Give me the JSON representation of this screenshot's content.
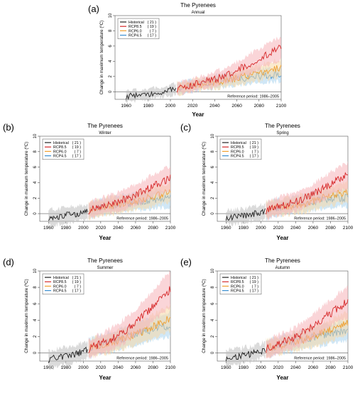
{
  "colors": {
    "historical": "#222222",
    "rcp85": "#d62728",
    "rcp60": "#f0a030",
    "rcp45": "#3a8fd0",
    "historical_band": "#bdbdbd",
    "rcp85_band": "#f6b2b8",
    "rcp60_band": "#f8d9a6",
    "rcp45_band": "#a9d3ef"
  },
  "chart_data": [
    {
      "id": "a",
      "letter": "(a)",
      "type": "line",
      "title": "The Pyrenees",
      "subtitle": "Annual",
      "xlabel": "Year",
      "ylabel": "Change in maximum temperature (ºC)",
      "xlim": [
        1950,
        2100
      ],
      "ylim": [
        -1,
        10
      ],
      "xticks": [
        1960,
        1980,
        2000,
        2020,
        2040,
        2060,
        2080,
        2100
      ],
      "yticks": [
        0,
        2,
        4,
        6,
        8,
        10
      ],
      "reference": "Reference period: 1986–2005",
      "legend_position": "top-left",
      "series": [
        {
          "name": "Historical",
          "count": "21",
          "key": "historical",
          "x": [
            1960,
            1970,
            1980,
            1990,
            2000,
            2005
          ],
          "y": [
            -0.6,
            -0.5,
            -0.3,
            -0.1,
            0.2,
            0.3
          ],
          "spread": [
            0.5,
            0.5,
            0.5,
            0.5,
            0.5,
            0.5
          ]
        },
        {
          "name": "RCP8.5",
          "count": "19",
          "key": "rcp85",
          "x": [
            2006,
            2020,
            2040,
            2060,
            2080,
            2100
          ],
          "y": [
            0.4,
            0.9,
            1.6,
            2.8,
            4.3,
            5.8
          ],
          "spread": [
            0.6,
            0.7,
            0.8,
            1.0,
            1.2,
            1.4
          ]
        },
        {
          "name": "RCP6.0",
          "count": "7",
          "key": "rcp60",
          "x": [
            2006,
            2020,
            2040,
            2060,
            2080,
            2100
          ],
          "y": [
            0.4,
            0.8,
            1.2,
            1.8,
            2.5,
            3.2
          ],
          "spread": [
            0.6,
            0.6,
            0.7,
            0.8,
            0.9,
            1.0
          ]
        },
        {
          "name": "RCP4.5",
          "count": "17",
          "key": "rcp45",
          "x": [
            2006,
            2020,
            2040,
            2060,
            2080,
            2100
          ],
          "y": [
            0.4,
            0.8,
            1.3,
            1.7,
            2.1,
            2.3
          ],
          "spread": [
            0.6,
            0.6,
            0.7,
            0.7,
            0.8,
            0.8
          ]
        }
      ]
    },
    {
      "id": "b",
      "letter": "(b)",
      "type": "line",
      "title": "The Pyrenees",
      "subtitle": "Winter",
      "xlabel": "Year",
      "ylabel": "Change in maximum temperature (ºC)",
      "xlim": [
        1950,
        2100
      ],
      "ylim": [
        -1,
        10
      ],
      "xticks": [
        1960,
        1980,
        2000,
        2020,
        2040,
        2060,
        2080,
        2100
      ],
      "yticks": [
        0,
        2,
        4,
        6,
        8,
        10
      ],
      "reference": "Reference period: 1986–2005",
      "legend_position": "top-left",
      "series": [
        {
          "name": "Historical",
          "count": "21",
          "key": "historical",
          "x": [
            1960,
            1970,
            1980,
            1990,
            2000,
            2005
          ],
          "y": [
            -0.5,
            -0.4,
            -0.2,
            -0.1,
            0.1,
            0.3
          ],
          "spread": [
            0.9,
            0.9,
            0.9,
            0.9,
            0.9,
            0.9
          ]
        },
        {
          "name": "RCP8.5",
          "count": "19",
          "key": "rcp85",
          "x": [
            2006,
            2020,
            2040,
            2060,
            2080,
            2100
          ],
          "y": [
            0.4,
            0.9,
            1.5,
            2.4,
            3.6,
            4.6
          ],
          "spread": [
            0.9,
            1.0,
            1.1,
            1.2,
            1.3,
            1.4
          ]
        },
        {
          "name": "RCP6.0",
          "count": "7",
          "key": "rcp60",
          "x": [
            2006,
            2020,
            2040,
            2060,
            2080,
            2100
          ],
          "y": [
            0.4,
            0.8,
            1.1,
            1.6,
            2.2,
            2.8
          ],
          "spread": [
            0.9,
            0.9,
            1.0,
            1.0,
            1.1,
            1.1
          ]
        },
        {
          "name": "RCP4.5",
          "count": "17",
          "key": "rcp45",
          "x": [
            2006,
            2020,
            2040,
            2060,
            2080,
            2100
          ],
          "y": [
            0.4,
            0.8,
            1.2,
            1.5,
            1.8,
            2.0
          ],
          "spread": [
            0.9,
            0.9,
            0.9,
            1.0,
            1.0,
            1.0
          ]
        }
      ]
    },
    {
      "id": "c",
      "letter": "(c)",
      "type": "line",
      "title": "The Pyrenees",
      "subtitle": "Spring",
      "xlabel": "Year",
      "ylabel": "Change in maximum temperature (ºC)",
      "xlim": [
        1950,
        2100
      ],
      "ylim": [
        -1,
        10
      ],
      "xticks": [
        1960,
        1980,
        2000,
        2020,
        2040,
        2060,
        2080,
        2100
      ],
      "yticks": [
        0,
        2,
        4,
        6,
        8,
        10
      ],
      "reference": "Reference period: 1986–2005",
      "legend_position": "top-left",
      "series": [
        {
          "name": "Historical",
          "count": "21",
          "key": "historical",
          "x": [
            1960,
            1970,
            1980,
            1990,
            2000,
            2005
          ],
          "y": [
            -0.5,
            -0.4,
            -0.3,
            -0.1,
            0.2,
            0.3
          ],
          "spread": [
            0.8,
            0.8,
            0.8,
            0.8,
            0.8,
            0.8
          ]
        },
        {
          "name": "RCP8.5",
          "count": "19",
          "key": "rcp85",
          "x": [
            2006,
            2020,
            2040,
            2060,
            2080,
            2100
          ],
          "y": [
            0.4,
            0.9,
            1.5,
            2.5,
            3.8,
            5.0
          ],
          "spread": [
            0.9,
            1.0,
            1.1,
            1.2,
            1.4,
            1.5
          ]
        },
        {
          "name": "RCP6.0",
          "count": "7",
          "key": "rcp60",
          "x": [
            2006,
            2020,
            2040,
            2060,
            2080,
            2100
          ],
          "y": [
            0.4,
            0.8,
            1.1,
            1.6,
            2.3,
            2.9
          ],
          "spread": [
            0.9,
            0.9,
            1.0,
            1.0,
            1.1,
            1.2
          ]
        },
        {
          "name": "RCP4.5",
          "count": "17",
          "key": "rcp45",
          "x": [
            2006,
            2020,
            2040,
            2060,
            2080,
            2100
          ],
          "y": [
            0.4,
            0.8,
            1.2,
            1.6,
            1.9,
            2.1
          ],
          "spread": [
            0.9,
            0.9,
            0.9,
            1.0,
            1.0,
            1.0
          ]
        }
      ]
    },
    {
      "id": "d",
      "letter": "(d)",
      "type": "line",
      "title": "The Pyrenees",
      "subtitle": "Summer",
      "xlabel": "Year",
      "ylabel": "Change in maximum temperature (ºC)",
      "xlim": [
        1950,
        2100
      ],
      "ylim": [
        -1,
        10
      ],
      "xticks": [
        1960,
        1980,
        2000,
        2020,
        2040,
        2060,
        2080,
        2100
      ],
      "yticks": [
        0,
        2,
        4,
        6,
        8,
        10
      ],
      "reference": "Reference period: 1986–2005",
      "legend_position": "top-left",
      "series": [
        {
          "name": "Historical",
          "count": "21",
          "key": "historical",
          "x": [
            1960,
            1970,
            1980,
            1990,
            2000,
            2005
          ],
          "y": [
            -0.8,
            -0.6,
            -0.4,
            -0.2,
            0.2,
            0.4
          ],
          "spread": [
            0.9,
            0.9,
            0.9,
            0.9,
            0.9,
            0.9
          ]
        },
        {
          "name": "RCP8.5",
          "count": "19",
          "key": "rcp85",
          "x": [
            2006,
            2020,
            2040,
            2060,
            2080,
            2100
          ],
          "y": [
            0.5,
            1.1,
            2.1,
            3.7,
            5.7,
            7.8
          ],
          "spread": [
            1.0,
            1.1,
            1.3,
            1.5,
            1.8,
            2.0
          ]
        },
        {
          "name": "RCP6.0",
          "count": "7",
          "key": "rcp60",
          "x": [
            2006,
            2020,
            2040,
            2060,
            2080,
            2100
          ],
          "y": [
            0.5,
            0.9,
            1.5,
            2.3,
            3.2,
            4.2
          ],
          "spread": [
            1.0,
            1.0,
            1.1,
            1.2,
            1.3,
            1.4
          ]
        },
        {
          "name": "RCP4.5",
          "count": "17",
          "key": "rcp45",
          "x": [
            2006,
            2020,
            2040,
            2060,
            2080,
            2100
          ],
          "y": [
            0.5,
            1.0,
            1.6,
            2.3,
            2.9,
            3.4
          ],
          "spread": [
            1.0,
            1.0,
            1.1,
            1.2,
            1.2,
            1.3
          ]
        }
      ]
    },
    {
      "id": "e",
      "letter": "(e)",
      "type": "line",
      "title": "The Pyrenees",
      "subtitle": "Autumn",
      "xlabel": "Year",
      "ylabel": "Change in maximum temperature (ºC)",
      "xlim": [
        1950,
        2100
      ],
      "ylim": [
        -1,
        10
      ],
      "xticks": [
        1960,
        1980,
        2000,
        2020,
        2040,
        2060,
        2080,
        2100
      ],
      "yticks": [
        0,
        2,
        4,
        6,
        8,
        10
      ],
      "reference": "Reference period: 1986–2005",
      "legend_position": "top-left",
      "series": [
        {
          "name": "Historical",
          "count": "21",
          "key": "historical",
          "x": [
            1960,
            1970,
            1980,
            1990,
            2000,
            2005
          ],
          "y": [
            -0.6,
            -0.5,
            -0.3,
            -0.1,
            0.2,
            0.4
          ],
          "spread": [
            0.8,
            0.8,
            0.8,
            0.8,
            0.8,
            0.8
          ]
        },
        {
          "name": "RCP8.5",
          "count": "19",
          "key": "rcp85",
          "x": [
            2006,
            2020,
            2040,
            2060,
            2080,
            2100
          ],
          "y": [
            0.5,
            1.1,
            1.9,
            3.3,
            4.8,
            6.3
          ],
          "spread": [
            0.9,
            1.0,
            1.1,
            1.3,
            1.5,
            1.7
          ]
        },
        {
          "name": "RCP6.0",
          "count": "7",
          "key": "rcp60",
          "x": [
            2006,
            2020,
            2040,
            2060,
            2080,
            2100
          ],
          "y": [
            0.5,
            0.9,
            1.4,
            2.0,
            2.8,
            3.6
          ],
          "spread": [
            0.9,
            0.9,
            1.0,
            1.1,
            1.2,
            1.3
          ]
        },
        {
          "name": "RCP4.5",
          "count": "17",
          "key": "rcp45",
          "x": [
            2006,
            2020,
            2040,
            2060,
            2080,
            2100
          ],
          "y": [
            0.5,
            0.9,
            1.4,
            1.9,
            2.4,
            2.7
          ],
          "spread": [
            0.9,
            0.9,
            1.0,
            1.0,
            1.1,
            1.1
          ]
        }
      ]
    }
  ]
}
